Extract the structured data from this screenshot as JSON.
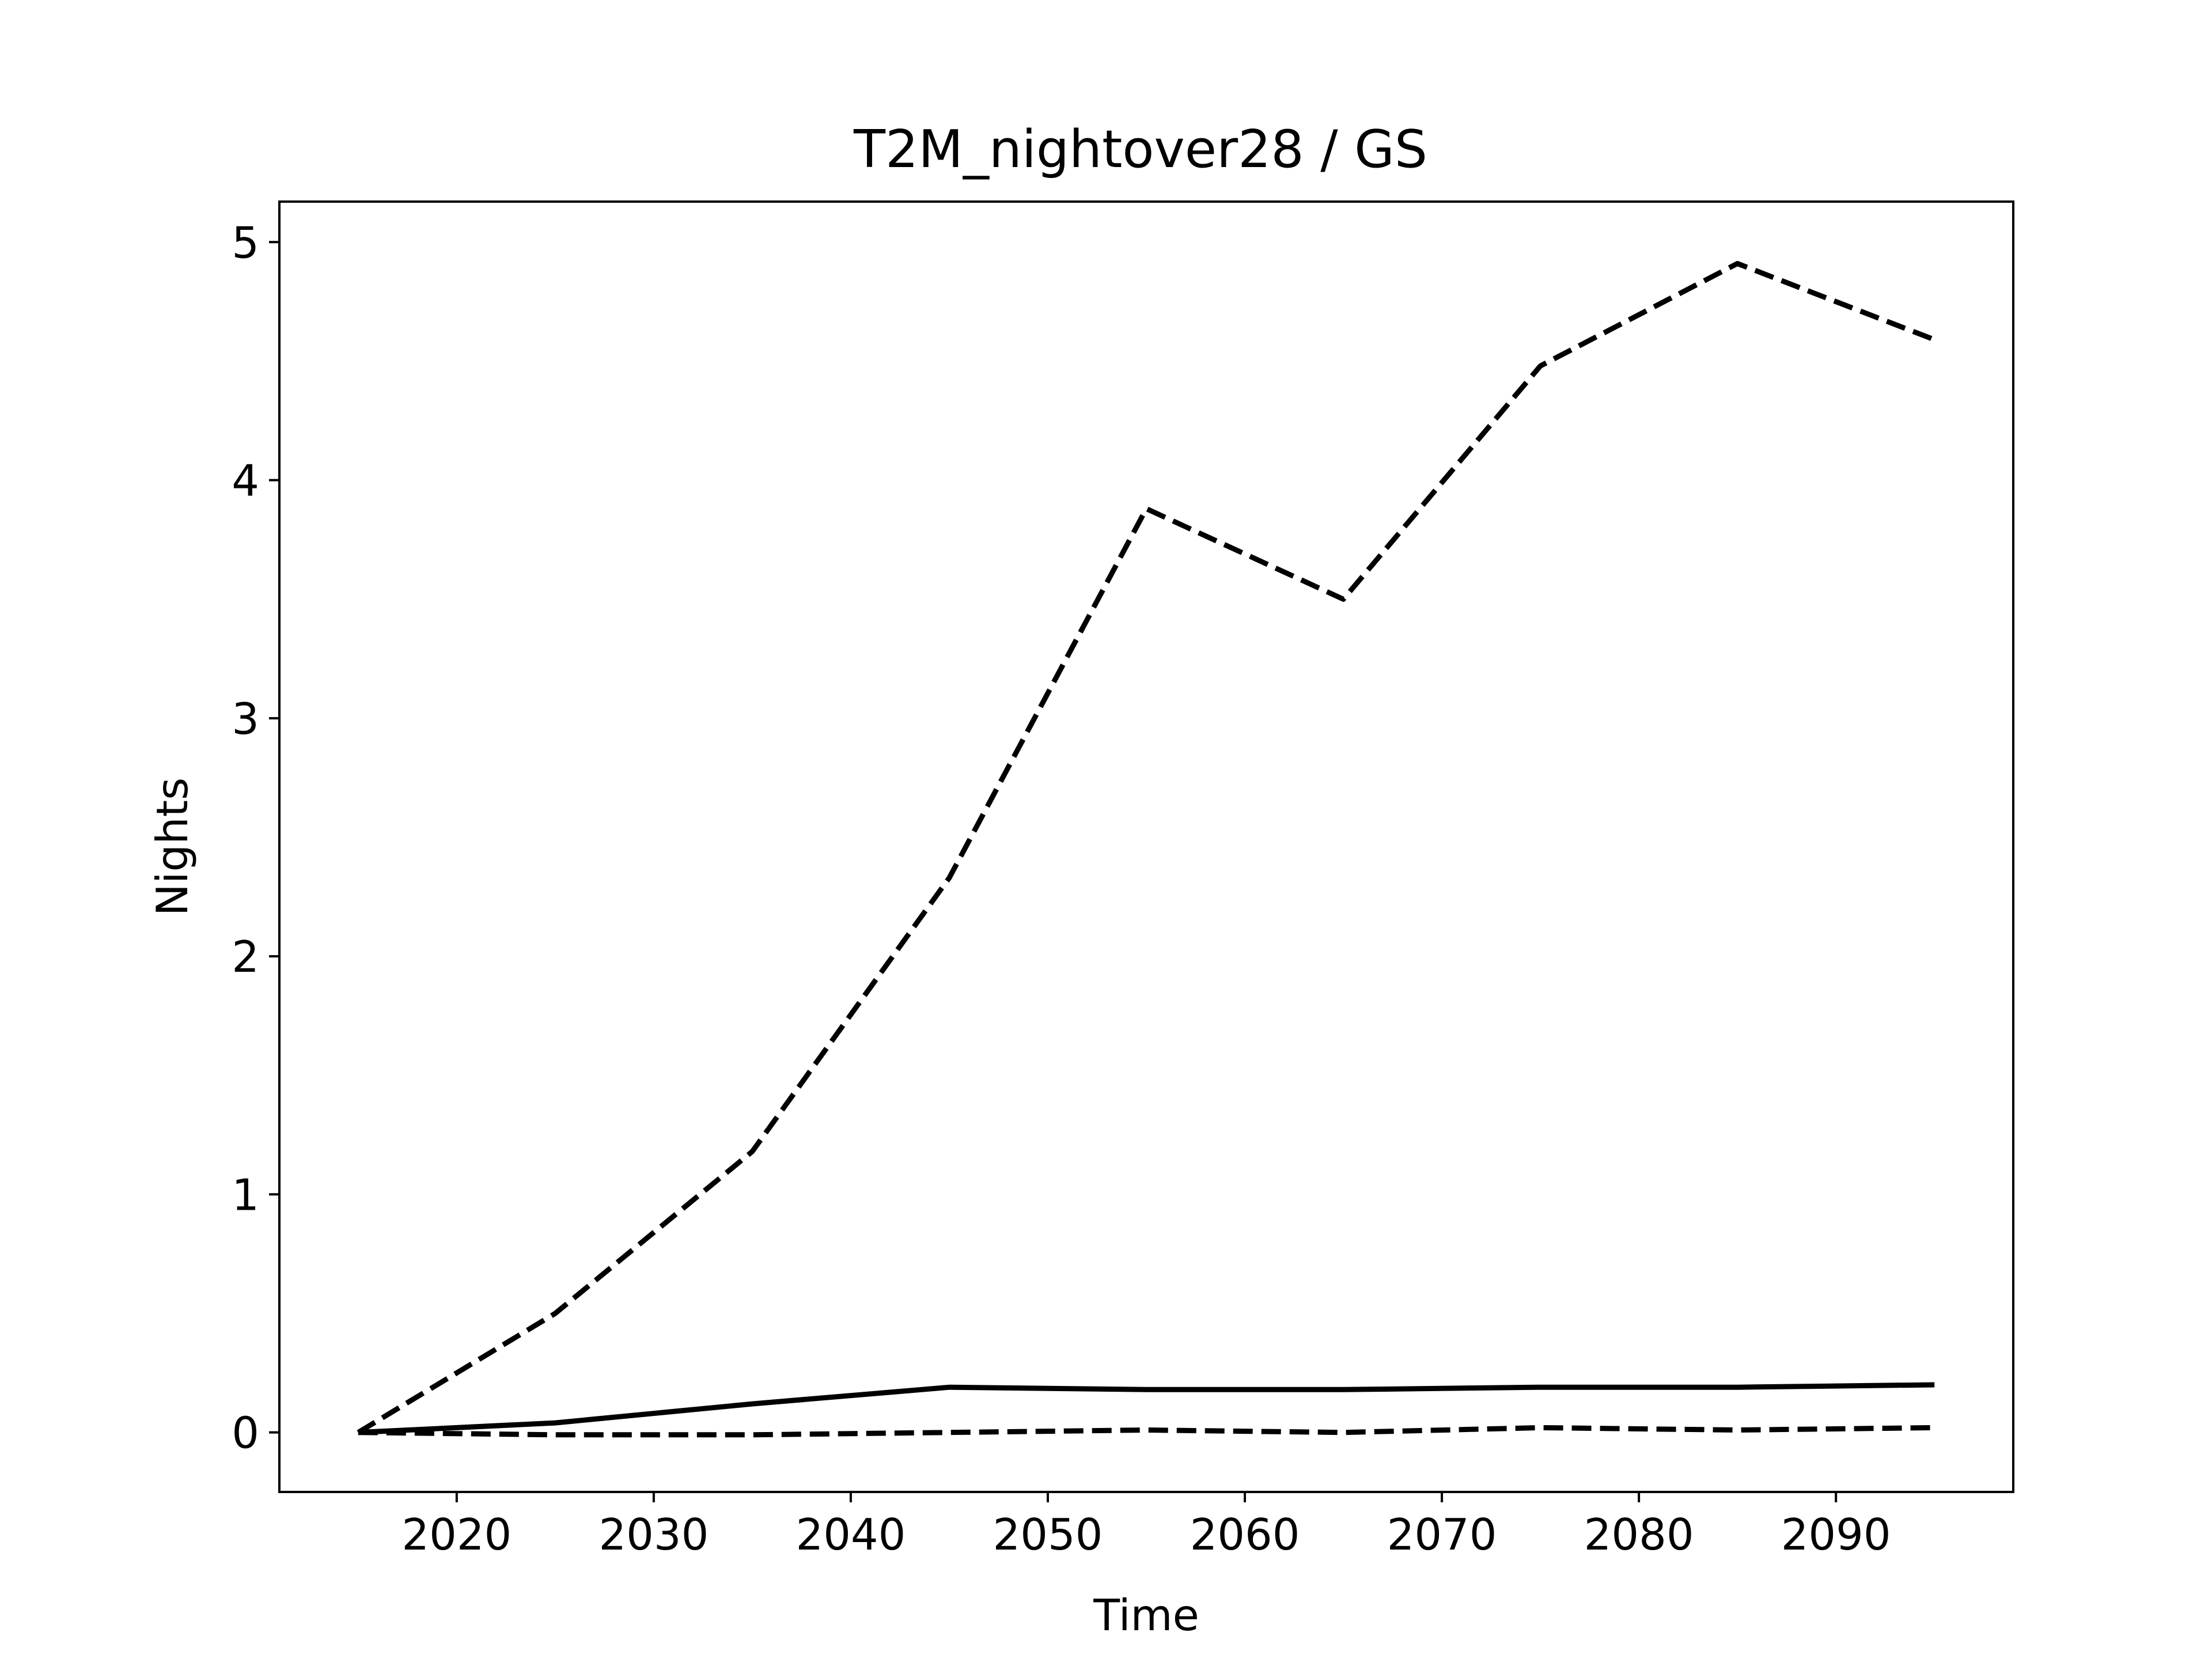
{
  "chart_data": {
    "type": "line",
    "title": "T2M_nightover28 / GS",
    "xlabel": "Time",
    "ylabel": "Nights",
    "xlim": [
      2011,
      2099
    ],
    "ylim": [
      -0.25,
      5.17
    ],
    "xticks": [
      2020,
      2030,
      2040,
      2050,
      2060,
      2070,
      2080,
      2090
    ],
    "yticks": [
      0,
      1,
      2,
      3,
      4,
      5
    ],
    "grid": false,
    "x": [
      2015,
      2025,
      2035,
      2045,
      2055,
      2065,
      2075,
      2085,
      2095
    ],
    "series": [
      {
        "style": "dashed",
        "color": "#000000",
        "values": [
          0.0,
          0.5,
          1.18,
          2.33,
          3.88,
          3.5,
          4.48,
          4.91,
          4.59
        ]
      },
      {
        "style": "solid",
        "color": "#000000",
        "values": [
          0.0,
          0.04,
          0.12,
          0.19,
          0.18,
          0.18,
          0.19,
          0.19,
          0.2
        ]
      },
      {
        "style": "dashed",
        "color": "#000000",
        "values": [
          0.0,
          -0.01,
          -0.01,
          0.0,
          0.01,
          0.0,
          0.02,
          0.01,
          0.02
        ]
      }
    ]
  }
}
